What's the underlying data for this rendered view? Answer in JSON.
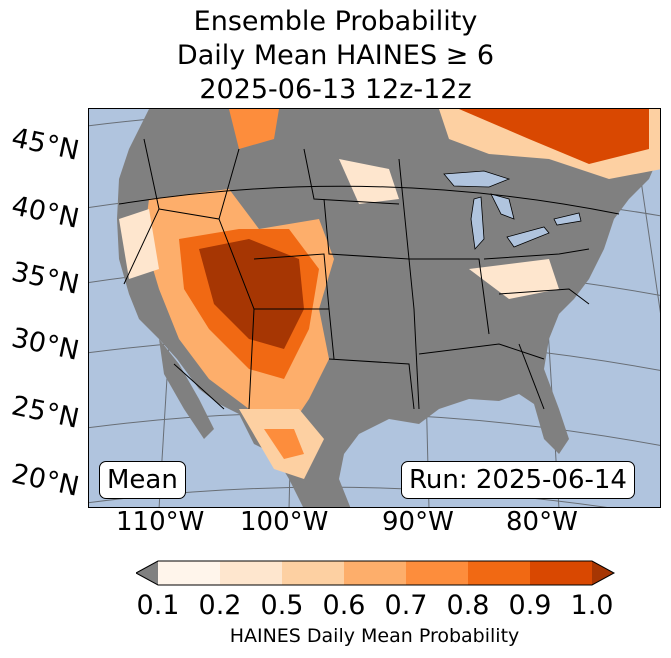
{
  "title": {
    "line1": "Ensemble Probability",
    "line2": "Daily Mean HAINES ≥ 6",
    "line3": "2025-06-13 12z-12z"
  },
  "map": {
    "ocean_color": "#b0c4de",
    "land_color": "#808080",
    "latitude_labels": [
      "45°N",
      "40°N",
      "35°N",
      "30°N",
      "25°N",
      "20°N"
    ],
    "longitude_labels": [
      "110°W",
      "100°W",
      "90°W",
      "80°W"
    ],
    "stat_label": "Mean",
    "run_label": "Run: 2025-06-14"
  },
  "colorbar": {
    "ticks": [
      "0.1",
      "0.2",
      "0.5",
      "0.6",
      "0.7",
      "0.8",
      "0.9",
      "1.0"
    ],
    "label": "HAINES Daily Mean Probability",
    "under_color": "#808080",
    "colors": [
      "#fff5eb",
      "#fee6ce",
      "#fdd0a2",
      "#fdae6b",
      "#fd8d3c",
      "#f16913",
      "#d94801",
      "#a63603"
    ]
  }
}
